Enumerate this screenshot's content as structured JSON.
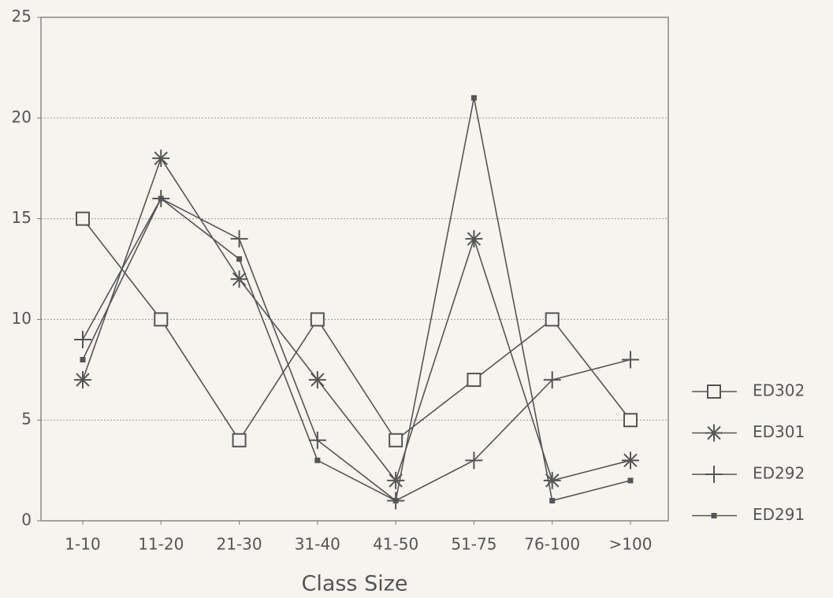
{
  "chart_data": {
    "type": "line",
    "x_label": "Class Size",
    "categories": [
      "1-10",
      "11-20",
      "21-30",
      "31-40",
      "41-50",
      "51-75",
      "76-100",
      ">100"
    ],
    "series": [
      {
        "name": "ED302",
        "color": "#555555",
        "marker": "square",
        "values": [
          15,
          10,
          4,
          10,
          4,
          7,
          10,
          5
        ]
      },
      {
        "name": "ED301",
        "color": "#555555",
        "marker": "star",
        "values": [
          7,
          18,
          12,
          7,
          2,
          14,
          2,
          3
        ]
      },
      {
        "name": "ED292",
        "color": "#555555",
        "marker": "plus",
        "values": [
          9,
          16,
          14,
          4,
          1,
          3,
          7,
          8
        ]
      },
      {
        "name": "ED291",
        "color": "#555555",
        "marker": "dot",
        "values": [
          8,
          16,
          13,
          3,
          1,
          21,
          1,
          2
        ]
      }
    ],
    "ylim": [
      0,
      25
    ],
    "yticks": [
      0,
      5,
      10,
      15,
      20,
      25
    ],
    "grid": true,
    "legend": "right"
  }
}
